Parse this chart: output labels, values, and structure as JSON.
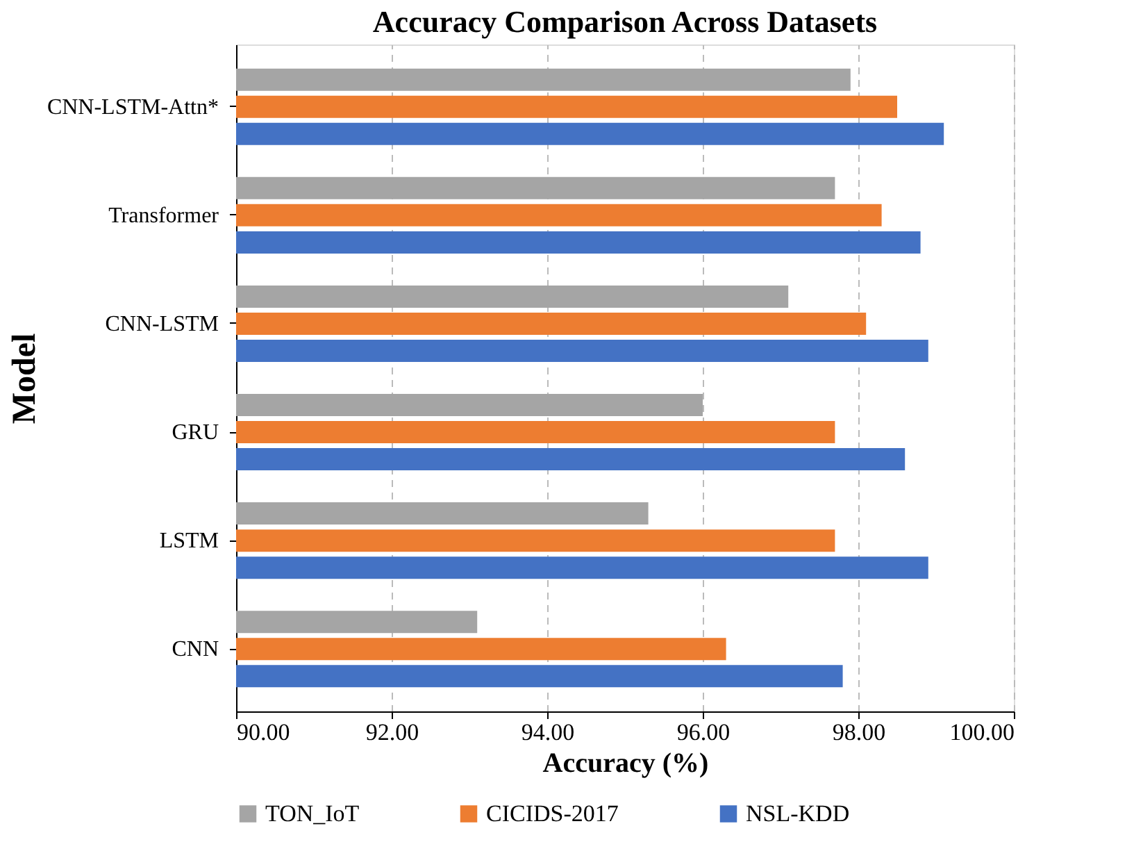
{
  "chart_data": {
    "type": "bar",
    "orientation": "horizontal",
    "title": "Accuracy Comparison Across Datasets",
    "xlabel": "Accuracy (%)",
    "ylabel": "Model",
    "categories": [
      "CNN-LSTM-Attn*",
      "Transformer",
      "CNN-LSTM",
      "GRU",
      "LSTM",
      "CNN"
    ],
    "series": [
      {
        "name": "TON_IoT",
        "color": "#a5a5a5",
        "values": [
          97.9,
          97.7,
          97.1,
          96.0,
          95.3,
          93.1
        ]
      },
      {
        "name": "CICIDS-2017",
        "color": "#ed7d31",
        "values": [
          98.5,
          98.3,
          98.1,
          97.7,
          97.7,
          96.3
        ]
      },
      {
        "name": "NSL-KDD",
        "color": "#4472c4",
        "values": [
          99.1,
          98.8,
          98.9,
          98.6,
          98.9,
          97.8
        ]
      }
    ],
    "xlim": [
      90,
      100
    ],
    "xticks": [
      {
        "value": 90,
        "label": "90.00"
      },
      {
        "value": 92,
        "label": "92.00"
      },
      {
        "value": 94,
        "label": "94.00"
      },
      {
        "value": 96,
        "label": "96.00"
      },
      {
        "value": 98,
        "label": "98.00"
      },
      {
        "value": 100,
        "label": "100.00"
      }
    ],
    "grid": "x",
    "legend": "bottom"
  }
}
